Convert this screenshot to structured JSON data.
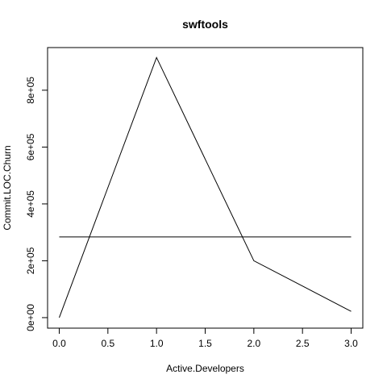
{
  "chart_data": {
    "type": "line",
    "title": "swftools",
    "xlabel": "Active.Developers",
    "ylabel": "Commit.LOC.Churn",
    "xlim": [
      -0.12,
      3.12
    ],
    "ylim": [
      -37000,
      950000
    ],
    "x_ticks": [
      0,
      0.5,
      1,
      1.5,
      2,
      2.5,
      3
    ],
    "x_tick_labels": [
      "0.0",
      "0.5",
      "1.0",
      "1.5",
      "2.0",
      "2.5",
      "3.0"
    ],
    "y_ticks": [
      0,
      200000,
      400000,
      600000,
      800000
    ],
    "y_tick_labels": [
      "0e+00",
      "2e+05",
      "4e+05",
      "6e+05",
      "8e+05"
    ],
    "grid": false,
    "series": [
      {
        "x": [
          0,
          1,
          2,
          3
        ],
        "y": [
          0,
          915000,
          200000,
          22000
        ]
      },
      {
        "x": [
          0,
          3
        ],
        "y": [
          284000,
          284000
        ]
      }
    ]
  }
}
